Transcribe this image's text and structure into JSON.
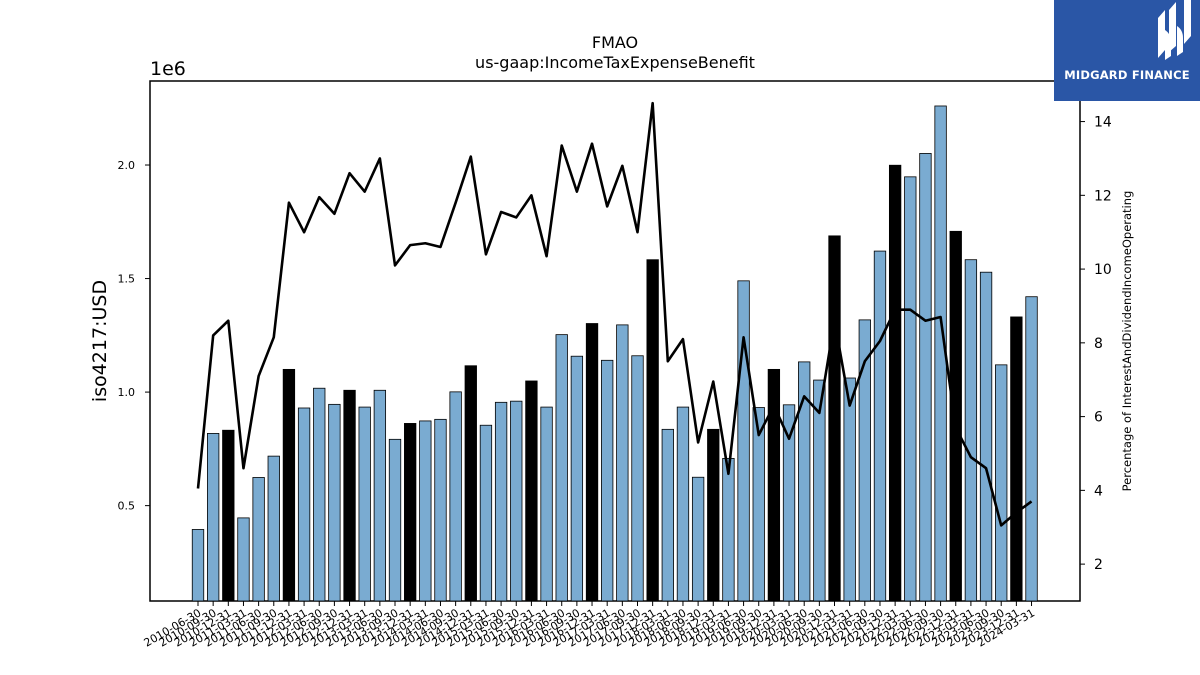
{
  "chart_data": {
    "type": "bar",
    "title": "FMAO",
    "subtitle": "us-gaap:IncomeTaxExpenseBenefit",
    "ylabel": "iso4217:USD",
    "y_offset_label": "1e6",
    "y2label": "Percentage of InterestAndDividendIncomeOperating",
    "ylim": [
      80000,
      2370000
    ],
    "y2lim": [
      1.0,
      15.1
    ],
    "yticks": [
      0.5,
      1.0,
      1.5,
      2.0
    ],
    "ytick_labels": [
      "0.5",
      "1.0",
      "1.5",
      "2.0"
    ],
    "y2ticks": [
      2,
      4,
      6,
      8,
      10,
      12,
      14
    ],
    "y2tick_labels": [
      "2",
      "4",
      "6",
      "8",
      "10",
      "12",
      "14"
    ],
    "categories": [
      "2010-06-30",
      "2010-09-30",
      "2010-12-31",
      "2011-03-31",
      "2011-06-30",
      "2011-09-30",
      "2011-12-31",
      "2012-03-31",
      "2012-06-30",
      "2012-09-30",
      "2012-12-31",
      "2013-03-31",
      "2013-06-30",
      "2013-09-30",
      "2013-12-31",
      "2014-03-31",
      "2014-06-30",
      "2014-09-30",
      "2014-12-31",
      "2015-03-31",
      "2015-06-30",
      "2015-09-30",
      "2015-12-31",
      "2016-03-31",
      "2016-06-30",
      "2016-09-30",
      "2016-12-31",
      "2017-03-31",
      "2017-06-30",
      "2017-09-30",
      "2017-12-31",
      "2018-03-31",
      "2018-06-30",
      "2018-09-30",
      "2018-12-31",
      "2019-03-31",
      "2019-06-30",
      "2019-09-30",
      "2019-12-31",
      "2020-03-31",
      "2020-06-30",
      "2020-09-30",
      "2020-12-31",
      "2021-03-31",
      "2021-06-30",
      "2021-09-30",
      "2021-12-31",
      "2022-03-31",
      "2022-06-30",
      "2022-09-30",
      "2022-12-31",
      "2023-03-31",
      "2023-06-30",
      "2023-09-30",
      "2023-12-31",
      "2024-03-31"
    ],
    "series": [
      {
        "kind": "bar",
        "values": [
          395000,
          818000,
          832000,
          446000,
          624000,
          718000,
          1100000,
          930000,
          1017000,
          946000,
          1008000,
          934000,
          1008000,
          792000,
          862000,
          873000,
          880000,
          1001000,
          1116000,
          854000,
          955000,
          960000,
          1049000,
          934000,
          1253000,
          1158000,
          1302000,
          1140000,
          1296000,
          1160000,
          1583000,
          836000,
          934000,
          625000,
          836000,
          708000,
          1490000,
          932000,
          1100000,
          944000,
          1133000,
          1053000,
          1688000,
          1062000,
          1318000,
          1621000,
          1999000,
          1948000,
          2051000,
          2260000,
          1708000,
          1583000,
          1528000,
          1120000,
          1331000,
          1420000
        ],
        "annual_flags": [
          0,
          0,
          1,
          0,
          0,
          0,
          1,
          0,
          0,
          0,
          1,
          0,
          0,
          0,
          1,
          0,
          0,
          0,
          1,
          0,
          0,
          0,
          1,
          0,
          0,
          0,
          1,
          0,
          0,
          0,
          1,
          0,
          0,
          0,
          1,
          0,
          0,
          0,
          1,
          0,
          0,
          0,
          1,
          0,
          0,
          0,
          1,
          0,
          0,
          0,
          1,
          0,
          0,
          0,
          1,
          0
        ]
      },
      {
        "kind": "line",
        "axis": "right",
        "values": [
          4.05,
          8.2,
          8.6,
          4.6,
          7.1,
          8.15,
          11.8,
          11.0,
          11.95,
          11.5,
          12.6,
          12.1,
          13.0,
          10.1,
          10.65,
          10.7,
          10.6,
          11.8,
          13.05,
          10.4,
          11.55,
          11.4,
          12.0,
          10.35,
          13.35,
          12.1,
          13.4,
          11.7,
          12.8,
          11.0,
          14.5,
          7.5,
          8.1,
          5.3,
          6.95,
          4.45,
          8.15,
          5.5,
          6.3,
          5.4,
          6.55,
          6.1,
          8.6,
          6.3,
          7.5,
          8.05,
          8.9,
          8.9,
          8.6,
          8.7,
          5.7,
          4.9,
          4.6,
          3.05,
          3.4,
          3.7
        ]
      }
    ]
  },
  "logo": {
    "text": "MIDGARD FINANCE",
    "icon": "midgard-logo-icon"
  },
  "colors": {
    "bar_quarter": "#7aabd1",
    "bar_annual": "#000000",
    "line": "#000000",
    "frame": "#000000"
  }
}
